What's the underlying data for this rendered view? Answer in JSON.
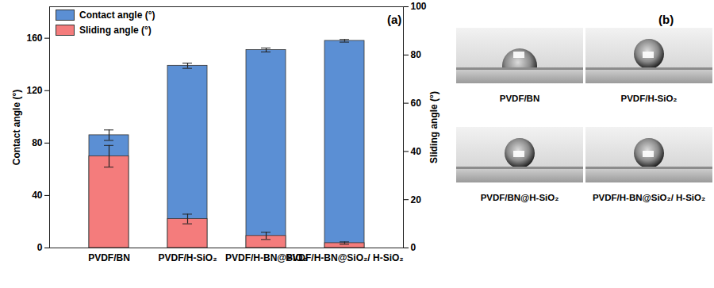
{
  "chart_data": {
    "type": "bar",
    "categories": [
      "PVDF/BN",
      "PVDF/H-SiO₂",
      "PVDF/H-BN@SiO₂",
      "PVDF/H-BN@SiO₂/ H-SiO₂"
    ],
    "series": [
      {
        "name": "Contact angle (°)",
        "color": "#5b8fd4",
        "values": [
          86,
          139,
          151,
          158
        ],
        "errors": [
          4,
          2,
          1.5,
          1
        ]
      },
      {
        "name": "Sliding angle (°)",
        "color": "#f47c7c",
        "axis": "y2",
        "values": [
          38,
          12,
          5,
          2
        ],
        "errors": [
          4.5,
          2,
          1.5,
          0.5
        ]
      }
    ],
    "ylabel": "Contact angle (°)",
    "y2label": "Sliding angle (°)",
    "ylim": [
      0,
      184
    ],
    "yticks": [
      0,
      40,
      80,
      120,
      160
    ],
    "y2lim": [
      0,
      100
    ],
    "y2ticks": [
      0,
      20,
      40,
      60,
      80,
      100
    ],
    "grid": false,
    "legend": "upper left",
    "annotations": [
      "(a)"
    ]
  },
  "panel_b": {
    "label": "(b)",
    "images": [
      "PVDF/BN",
      "PVDF/H-SiO₂",
      "PVDF/BN@H-SiO₂",
      "PVDF/H-BN@SiO₂/ H-SiO₂"
    ]
  }
}
